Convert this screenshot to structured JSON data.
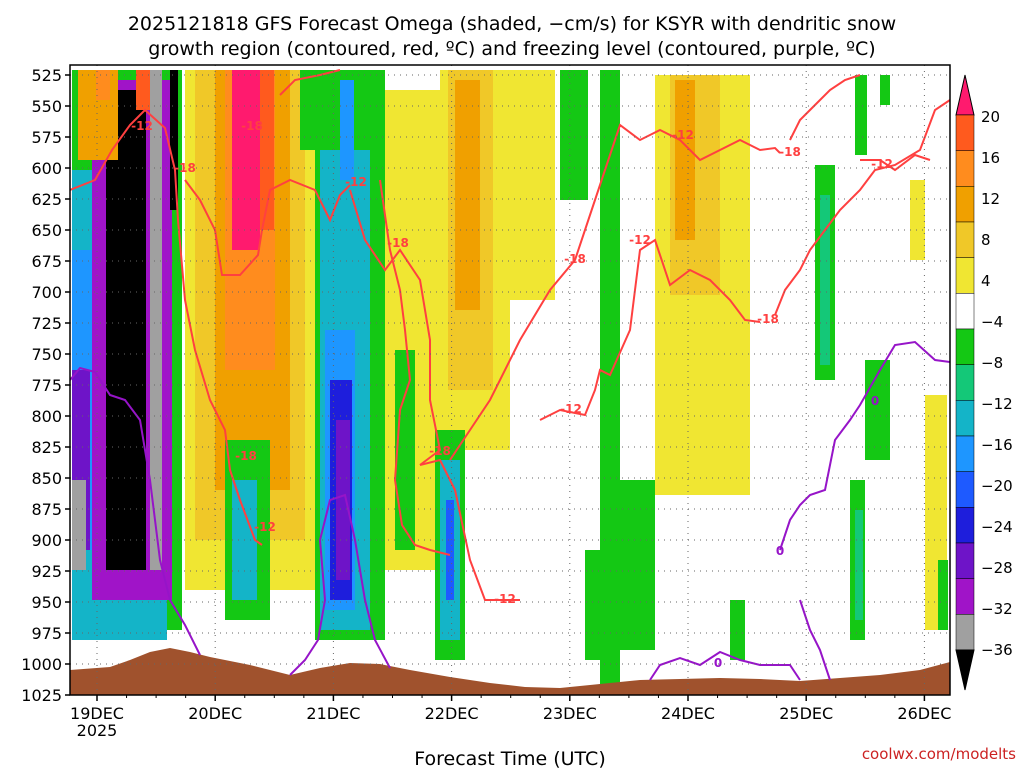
{
  "chart_data": {
    "type": "heatmap",
    "title_line1": "2025121818 GFS Forecast Omega (shaded, −cm/s) for KSYR with dendritic snow",
    "title_line2": "growth region (contoured, red, ºC) and freezing level (contoured, purple, ºC)",
    "xlabel": "Forecast Time (UTC)",
    "x_ticks": [
      "19DEC",
      "20DEC",
      "21DEC",
      "22DEC",
      "23DEC",
      "24DEC",
      "25DEC",
      "26DEC"
    ],
    "x_year": "2025",
    "y_ticks": [
      "525",
      "550",
      "575",
      "600",
      "625",
      "650",
      "675",
      "700",
      "725",
      "750",
      "775",
      "800",
      "825",
      "850",
      "875",
      "900",
      "925",
      "950",
      "975",
      "1000",
      "1025"
    ],
    "ylim": [
      1025,
      525
    ],
    "colorbar_labels": [
      "20",
      "16",
      "12",
      "8",
      "4",
      "−4",
      "−8",
      "−12",
      "−16",
      "−20",
      "−24",
      "−28",
      "−32",
      "−36"
    ],
    "colorbar_colors": [
      "#ff1a6e",
      "#ff5a1e",
      "#ff8c1e",
      "#f0a000",
      "#f0c828",
      "#f0e632",
      "#ffffff",
      "#14c814",
      "#14c878",
      "#14b4c8",
      "#1e96ff",
      "#1e5aff",
      "#1e1edc",
      "#6e14c8",
      "#a014c8",
      "#a0a0a0",
      "#000000"
    ],
    "contour_labels": [
      "-12",
      "-18",
      "-18",
      "-12",
      "-18",
      "-18",
      "-18",
      "-12",
      "-12",
      "-12",
      "-12",
      "-18",
      "-18",
      "-12",
      "-12",
      "-18",
      "0",
      "0",
      "0"
    ],
    "terrain_color": "#a0522d",
    "dendritic_color": "#ff4040",
    "freezing_color": "#9614c8",
    "credit": "coolwx.com/modelts"
  }
}
